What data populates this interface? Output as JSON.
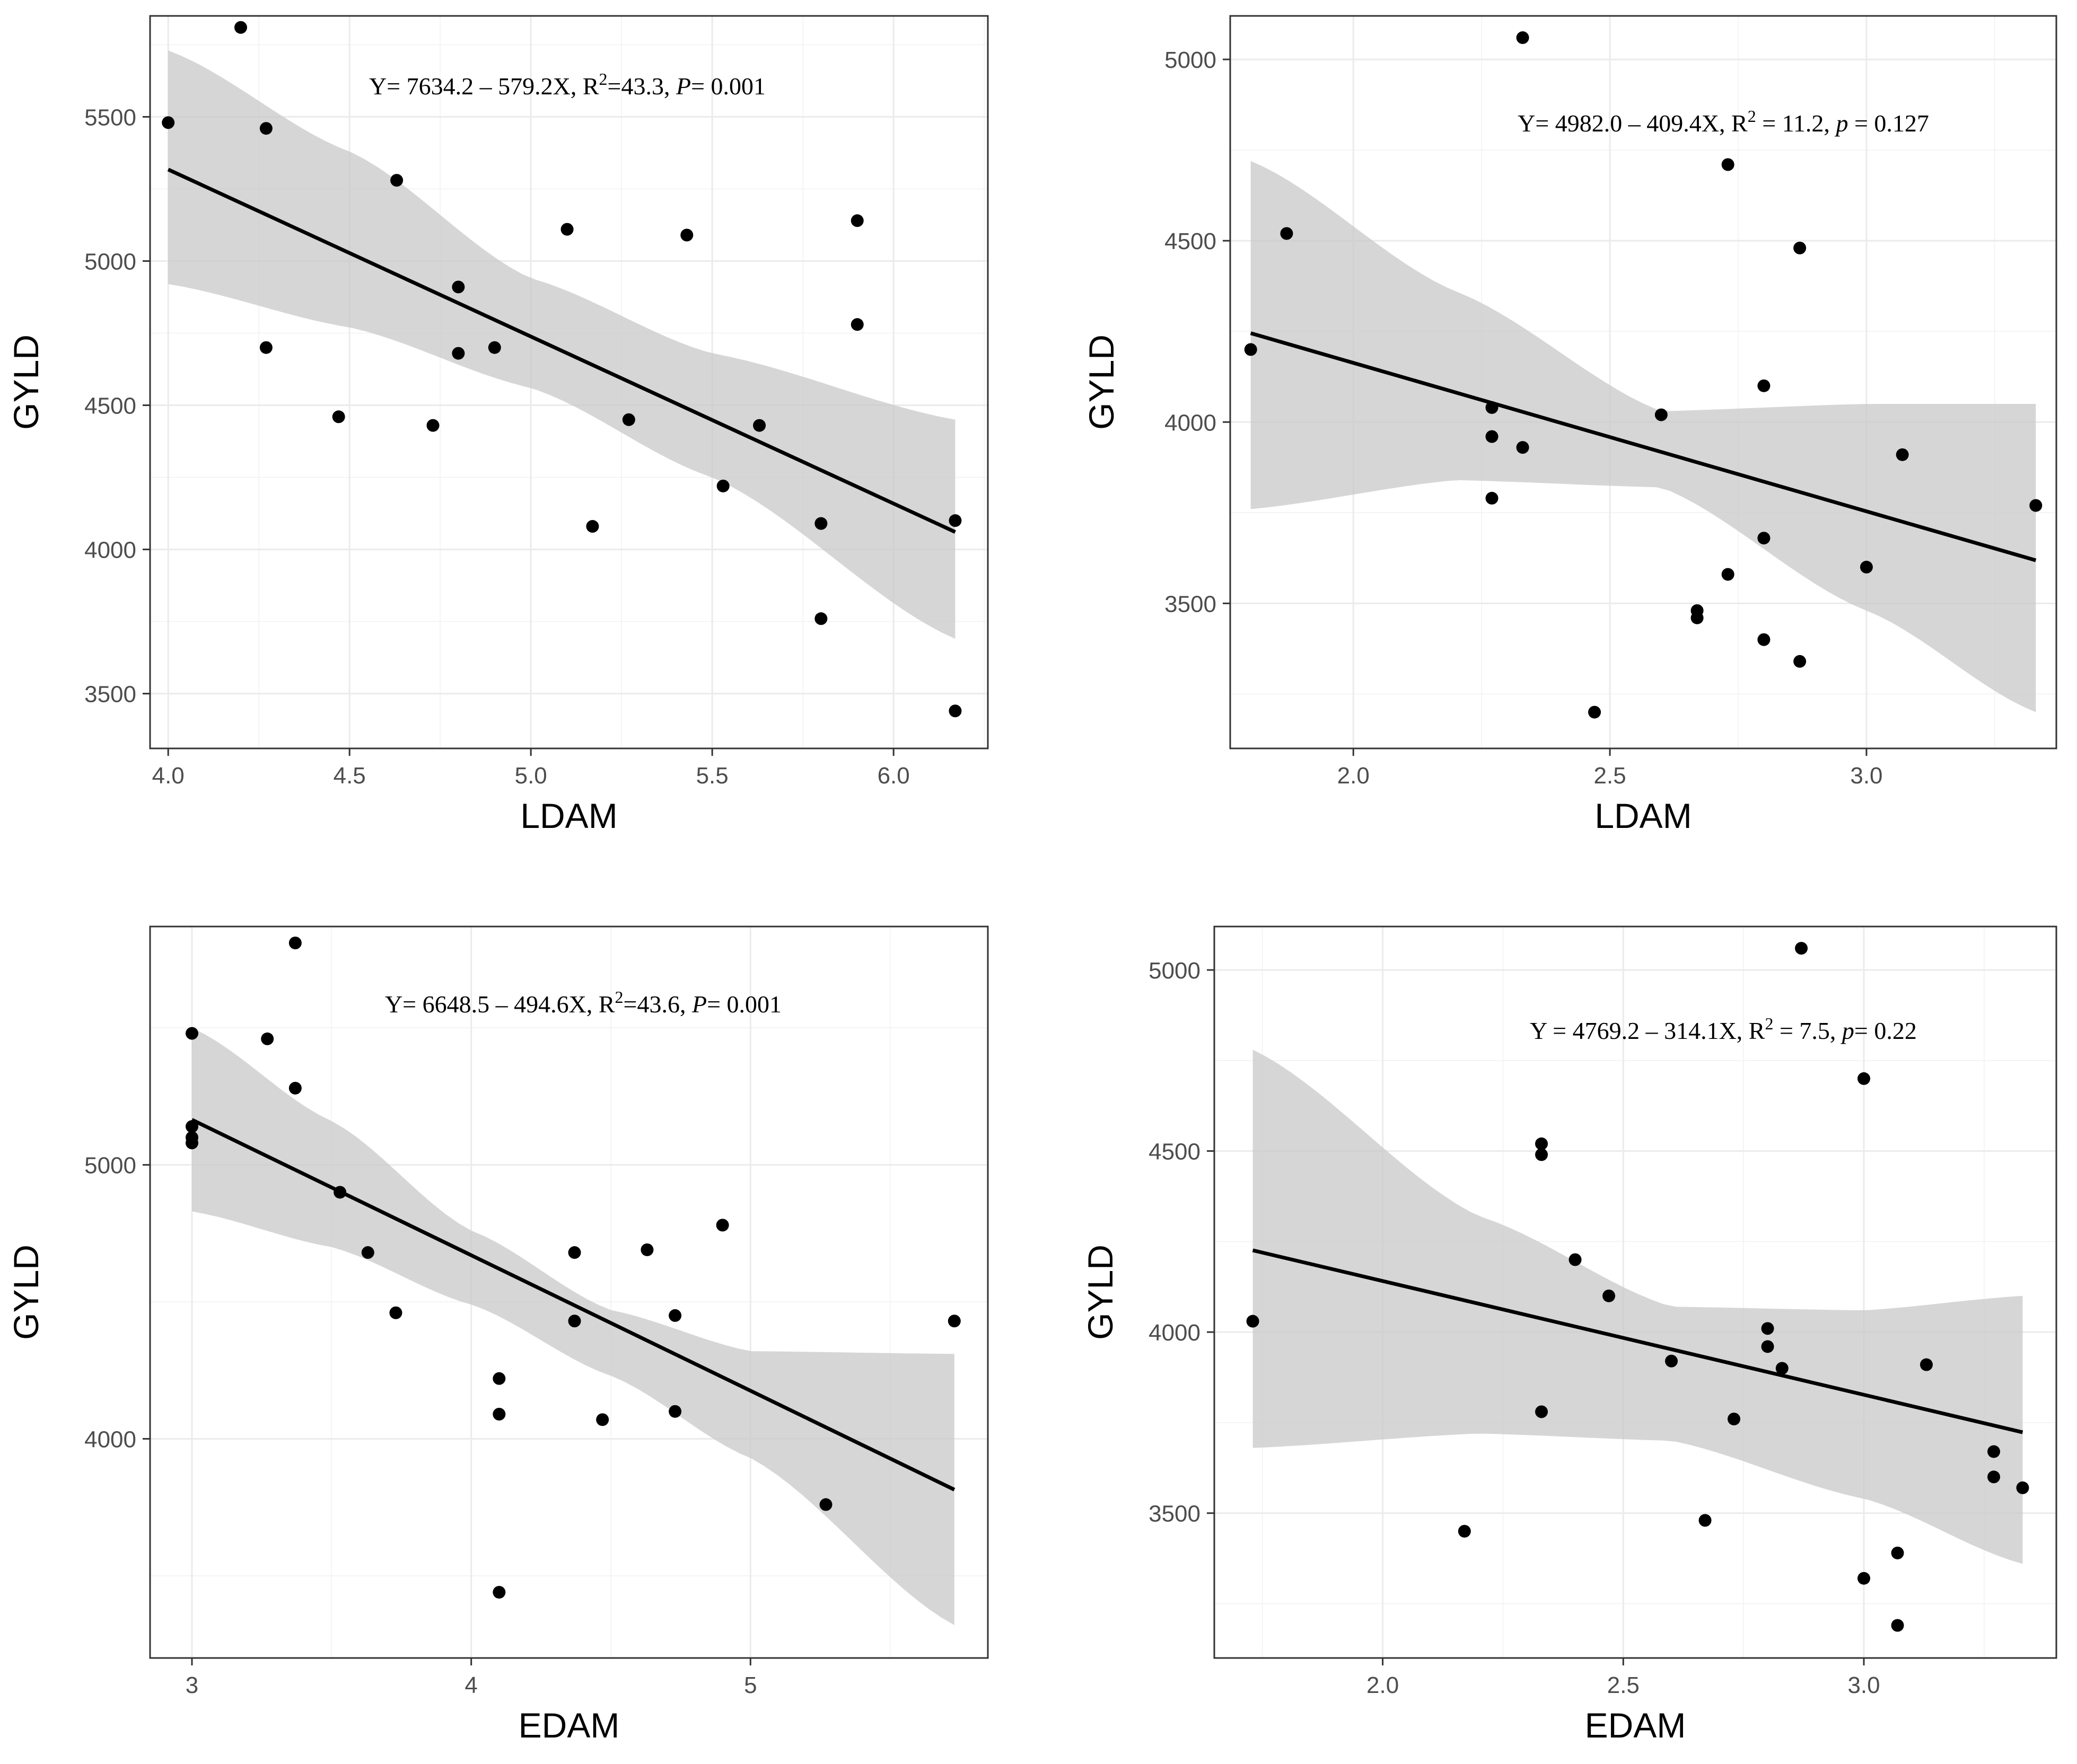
{
  "figure_colors": {
    "band": "#c8c8c8",
    "line": "#000000",
    "points": "#000000",
    "grid": "#ebebeb",
    "border": "#333333"
  },
  "chart_data": [
    {
      "type": "scatter",
      "id": "top-left",
      "xlabel": "LDAM",
      "ylabel": "GYLD",
      "xlim": [
        3.95,
        6.26
      ],
      "ylim": [
        3310,
        5850
      ],
      "xticks": [
        4.0,
        4.5,
        5.0,
        5.5,
        6.0
      ],
      "xtick_labels": [
        "4.0",
        "4.5",
        "5.0",
        "5.5",
        "6.0"
      ],
      "yticks": [
        3500,
        4000,
        4500,
        5000,
        5500
      ],
      "ytick_labels": [
        "3500",
        "4000",
        "4500",
        "5000",
        "5500"
      ],
      "equation": {
        "main": "Y= 7634.2 – 579.2X, R",
        "sup": "2",
        "r2": "=43.3, ",
        "pvar": "P",
        "pval": "= 0.001"
      },
      "fit": {
        "intercept": 7634.2,
        "slope": -579.2,
        "x_range": [
          4.0,
          6.17
        ]
      },
      "band": {
        "x": [
          4.0,
          4.5,
          5.0,
          5.5,
          6.17
        ],
        "lower": [
          4920,
          4770,
          4560,
          4250,
          3690
        ],
        "upper": [
          5730,
          5380,
          4940,
          4680,
          4450
        ]
      },
      "points": [
        [
          4.0,
          5480
        ],
        [
          4.2,
          5810
        ],
        [
          4.27,
          5460
        ],
        [
          4.27,
          4700
        ],
        [
          4.47,
          4460
        ],
        [
          4.63,
          5280
        ],
        [
          4.73,
          4430
        ],
        [
          4.8,
          4910
        ],
        [
          4.8,
          4680
        ],
        [
          4.9,
          4700
        ],
        [
          5.1,
          5110
        ],
        [
          5.17,
          4080
        ],
        [
          5.27,
          4450
        ],
        [
          5.43,
          5090
        ],
        [
          5.53,
          4220
        ],
        [
          5.63,
          4430
        ],
        [
          5.8,
          4090
        ],
        [
          5.8,
          3760
        ],
        [
          5.9,
          5140
        ],
        [
          5.9,
          4780
        ],
        [
          6.17,
          4100
        ],
        [
          6.17,
          3440
        ]
      ]
    },
    {
      "type": "scatter",
      "id": "top-right",
      "xlabel": "LDAM",
      "ylabel": "GYLD",
      "xlim": [
        1.76,
        3.37
      ],
      "ylim": [
        3100,
        5120
      ],
      "xticks": [
        2.0,
        2.5,
        3.0
      ],
      "xtick_labels": [
        "2.0",
        "2.5",
        "3.0"
      ],
      "yticks": [
        3500,
        4000,
        4500,
        5000
      ],
      "ytick_labels": [
        "3500",
        "4000",
        "4500",
        "5000"
      ],
      "equation": {
        "main": "Y= 4982.0 – 409.4X, R",
        "sup": "2",
        "r2": " = 11.2, ",
        "pvar": "p",
        "pval": " = 0.127"
      },
      "fit": {
        "intercept": 4982.0,
        "slope": -409.4,
        "x_range": [
          1.8,
          3.33
        ]
      },
      "band": {
        "x": [
          1.8,
          2.2,
          2.6,
          3.0,
          3.33
        ],
        "lower": [
          3760,
          3840,
          3820,
          3480,
          3200
        ],
        "upper": [
          4720,
          4360,
          4030,
          4050,
          4050
        ]
      },
      "points": [
        [
          1.8,
          4200
        ],
        [
          1.87,
          4520
        ],
        [
          2.27,
          4040
        ],
        [
          2.27,
          3960
        ],
        [
          2.27,
          3790
        ],
        [
          2.33,
          5060
        ],
        [
          2.33,
          3930
        ],
        [
          2.47,
          3200
        ],
        [
          2.6,
          4020
        ],
        [
          2.67,
          3480
        ],
        [
          2.67,
          3460
        ],
        [
          2.73,
          4710
        ],
        [
          2.73,
          3580
        ],
        [
          2.8,
          4100
        ],
        [
          2.8,
          3680
        ],
        [
          2.8,
          3400
        ],
        [
          2.87,
          4480
        ],
        [
          2.87,
          3340
        ],
        [
          3.0,
          3600
        ],
        [
          3.07,
          3910
        ],
        [
          3.33,
          3770
        ]
      ]
    },
    {
      "type": "scatter",
      "id": "bottom-left",
      "xlabel": "EDAM",
      "ylabel": "GYLD",
      "xlim": [
        2.85,
        5.85
      ],
      "ylim": [
        3200,
        5870
      ],
      "xticks": [
        3,
        4,
        5
      ],
      "xtick_labels": [
        "3",
        "4",
        "5"
      ],
      "yticks": [
        4000,
        5000
      ],
      "ytick_labels": [
        "4000",
        "5000"
      ],
      "equation": {
        "main": "Y= 6648.5 – 494.6X, R",
        "sup": "2",
        "r2": "=43.6, ",
        "pvar": "P",
        "pval": "= 0.001"
      },
      "fit": {
        "intercept": 6648.5,
        "slope": -494.6,
        "x_range": [
          3.0,
          5.73
        ]
      },
      "band": {
        "x": [
          3.0,
          3.5,
          4.0,
          4.5,
          5.0,
          5.73
        ],
        "lower": [
          4830,
          4700,
          4490,
          4230,
          3930,
          3320
        ],
        "upper": [
          5500,
          5160,
          4760,
          4470,
          4320,
          4310
        ]
      },
      "points": [
        [
          3.0,
          5480
        ],
        [
          3.0,
          5140
        ],
        [
          3.0,
          5100
        ],
        [
          3.0,
          5080
        ],
        [
          3.27,
          5460
        ],
        [
          3.37,
          5810
        ],
        [
          3.37,
          5280
        ],
        [
          3.53,
          4900
        ],
        [
          3.63,
          4680
        ],
        [
          3.73,
          4460
        ],
        [
          4.1,
          4220
        ],
        [
          4.1,
          4090
        ],
        [
          4.1,
          3440
        ],
        [
          4.37,
          4680
        ],
        [
          4.37,
          4430
        ],
        [
          4.47,
          4070
        ],
        [
          4.63,
          4690
        ],
        [
          4.73,
          4450
        ],
        [
          4.73,
          4100
        ],
        [
          4.9,
          4780
        ],
        [
          5.27,
          3760
        ],
        [
          5.73,
          4430
        ]
      ]
    },
    {
      "type": "scatter",
      "id": "bottom-right",
      "xlabel": "EDAM",
      "ylabel": "GYLD",
      "xlim": [
        1.65,
        3.4
      ],
      "ylim": [
        3100,
        5120
      ],
      "xticks": [
        2.0,
        2.5,
        3.0
      ],
      "xtick_labels": [
        "2.0",
        "2.5",
        "3.0"
      ],
      "yticks": [
        3500,
        4000,
        4500,
        5000
      ],
      "ytick_labels": [
        "3500",
        "4000",
        "4500",
        "5000"
      ],
      "equation": {
        "main": "Y = 4769.2 – 314.1X, R",
        "sup": "2",
        "r2": " = 7.5, ",
        "pvar": "p",
        "pval": "= 0.22"
      },
      "fit": {
        "intercept": 4769.2,
        "slope": -314.1,
        "x_range": [
          1.73,
          3.33
        ]
      },
      "band": {
        "x": [
          1.73,
          2.2,
          2.6,
          3.0,
          3.33
        ],
        "lower": [
          3680,
          3720,
          3700,
          3540,
          3360
        ],
        "upper": [
          4780,
          4320,
          4070,
          4060,
          4100
        ]
      },
      "points": [
        [
          1.73,
          4030
        ],
        [
          2.17,
          3450
        ],
        [
          2.33,
          4520
        ],
        [
          2.33,
          4490
        ],
        [
          2.33,
          3780
        ],
        [
          2.4,
          4200
        ],
        [
          2.47,
          4100
        ],
        [
          2.6,
          3920
        ],
        [
          2.67,
          3480
        ],
        [
          2.73,
          3760
        ],
        [
          2.8,
          4010
        ],
        [
          2.8,
          3960
        ],
        [
          2.83,
          3900
        ],
        [
          2.87,
          5060
        ],
        [
          3.0,
          4700
        ],
        [
          3.0,
          3320
        ],
        [
          3.07,
          3390
        ],
        [
          3.07,
          3190
        ],
        [
          3.13,
          3910
        ],
        [
          3.27,
          3670
        ],
        [
          3.27,
          3600
        ],
        [
          3.33,
          3570
        ]
      ]
    }
  ]
}
